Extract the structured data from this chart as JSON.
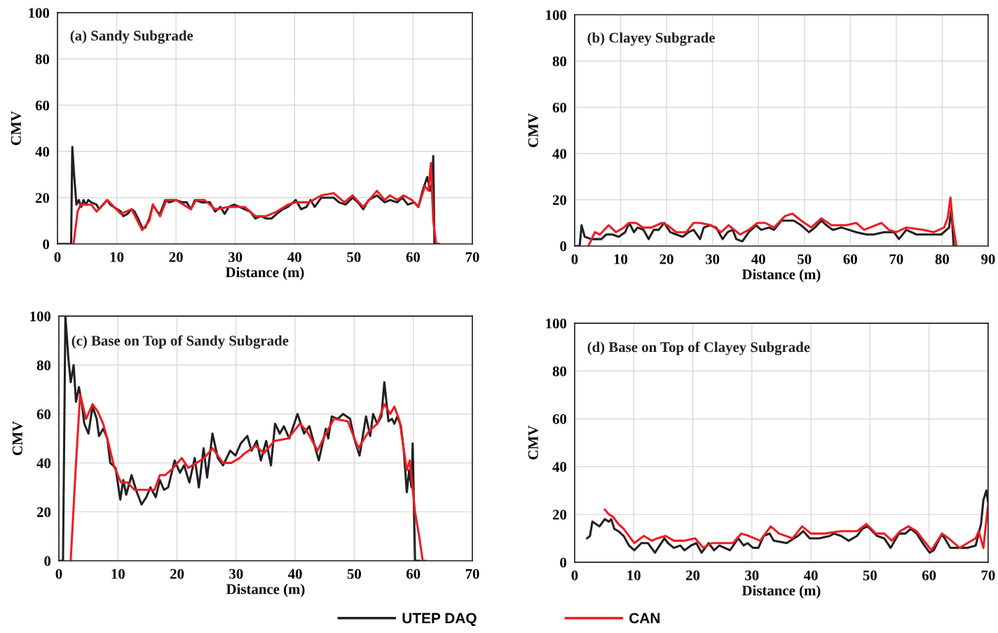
{
  "chart_data": [
    {
      "type": "line",
      "title": "(a) Sandy Subgrade",
      "xlabel": "Distance (m)",
      "ylabel": "CMV",
      "xlim": [
        0,
        70
      ],
      "ylim": [
        0,
        100
      ],
      "xticks": [
        0,
        10,
        20,
        30,
        40,
        50,
        60,
        70
      ],
      "yticks": [
        0,
        20,
        40,
        60,
        80,
        100
      ],
      "grid": true,
      "legend": "bottom",
      "series": [
        {
          "name": "UTEP DAQ",
          "color": "#231f20",
          "x": [
            0,
            2.3,
            2.5,
            2.8,
            3.2,
            3.6,
            4.0,
            4.4,
            4.8,
            5.2,
            5.7,
            6.6,
            7.0,
            7.7,
            8.4,
            8.9,
            9.5,
            10.7,
            11.1,
            11.8,
            12.5,
            13.0,
            13.6,
            14.3,
            14.8,
            15.5,
            16.1,
            16.8,
            17.3,
            18.2,
            18.9,
            20.0,
            21.1,
            21.8,
            22.5,
            23.2,
            24.3,
            25.7,
            26.6,
            27.5,
            28.2,
            28.9,
            29.8,
            30.7,
            31.6,
            32.5,
            33.4,
            34.3,
            35.2,
            36.1,
            37.0,
            38.0,
            38.9,
            40.2,
            41.1,
            42.0,
            42.7,
            43.4,
            44.5,
            45.7,
            46.6,
            47.5,
            48.6,
            49.8,
            50.7,
            51.6,
            52.5,
            53.9,
            55.2,
            56.1,
            57.3,
            58.2,
            59.1,
            60.2,
            60.9,
            61.6,
            62.4,
            62.9,
            63.2,
            63.4,
            63.6,
            64.3
          ],
          "values": [
            0,
            0,
            42,
            30,
            17,
            19,
            16,
            19,
            17,
            19,
            18,
            17,
            15,
            17,
            19,
            17,
            16,
            14,
            12,
            13,
            15,
            14,
            11,
            7,
            7,
            11,
            17,
            14,
            13,
            19,
            18,
            19,
            18,
            18,
            15,
            19,
            18,
            18,
            14,
            16,
            13,
            16,
            17,
            16,
            15,
            14,
            11,
            12,
            11,
            11,
            13,
            15,
            16,
            19,
            15,
            16,
            19,
            16,
            20,
            20,
            20,
            18,
            17,
            20,
            18,
            15,
            19,
            21,
            18,
            19,
            18,
            20,
            17,
            18,
            16,
            23,
            29,
            23,
            26,
            38,
            0,
            0
          ]
        },
        {
          "name": "CAN",
          "color": "#ed1c24",
          "x": [
            2.7,
            3.4,
            3.9,
            5.7,
            6.6,
            8.4,
            10.7,
            12.5,
            14.3,
            15.5,
            16.1,
            17.3,
            18.4,
            20.0,
            22.5,
            23.4,
            24.8,
            26.6,
            28.9,
            31.6,
            33.4,
            35.2,
            37.0,
            38.9,
            40.2,
            42.5,
            44.5,
            46.6,
            48.4,
            49.8,
            51.6,
            53.9,
            55.2,
            56.1,
            57.3,
            58.4,
            59.8,
            60.9,
            62.0,
            62.6,
            63.0,
            63.4,
            63.9,
            64.3
          ],
          "values": [
            0,
            14,
            17,
            17,
            14,
            19,
            13,
            15,
            6,
            10,
            17,
            12,
            19,
            19,
            15,
            19,
            19,
            15,
            16,
            16,
            12,
            12,
            14,
            17,
            18,
            18,
            21,
            22,
            18,
            21,
            16,
            23,
            19,
            21,
            19,
            21,
            19,
            16,
            25,
            23,
            35,
            10,
            0,
            0
          ]
        }
      ]
    },
    {
      "type": "line",
      "title": "(b) Clayey Subgrade",
      "xlabel": "Distance (m)",
      "ylabel": "CMV",
      "xlim": [
        0,
        90
      ],
      "ylim": [
        0,
        100
      ],
      "xticks": [
        0,
        10,
        20,
        30,
        40,
        50,
        60,
        70,
        80,
        90
      ],
      "yticks": [
        0,
        20,
        40,
        60,
        80,
        100
      ],
      "grid": true,
      "series": [
        {
          "color": "#231f20",
          "x": [
            0,
            1.1,
            1.5,
            2.2,
            3.6,
            4.7,
            5.8,
            6.9,
            8.2,
            9.6,
            11.0,
            11.9,
            12.9,
            13.7,
            15.0,
            16.1,
            17.2,
            18.3,
            19.5,
            20.8,
            22.1,
            23.5,
            24.8,
            25.9,
            27.3,
            28.1,
            29.5,
            30.8,
            32.2,
            33.3,
            34.4,
            35.2,
            36.5,
            37.9,
            39.5,
            40.6,
            42.3,
            43.4,
            45.0,
            46.1,
            47.7,
            49.3,
            51.0,
            52.3,
            53.7,
            54.8,
            56.2,
            58.1,
            59.7,
            61.3,
            63.5,
            65.1,
            67.3,
            69.5,
            70.6,
            72.2,
            74.4,
            76.6,
            78.2,
            79.8,
            81.5,
            82.0,
            82.5,
            83.1
          ],
          "values": [
            0,
            0,
            9,
            4,
            3,
            3,
            3,
            5,
            5,
            4,
            6,
            10,
            6,
            8,
            7,
            3,
            7,
            7,
            10,
            6,
            5,
            4,
            6,
            7,
            3,
            8,
            9,
            8,
            3,
            6,
            7,
            3,
            2,
            6,
            9,
            7,
            8,
            7,
            11,
            11,
            11,
            9,
            6,
            8,
            11,
            9,
            7,
            8,
            7,
            6,
            5,
            5,
            6,
            6,
            3,
            7,
            5,
            5,
            5,
            5,
            8,
            16,
            0,
            0
          ]
        },
        {
          "color": "#ed1c24",
          "x": [
            3.0,
            4.4,
            5.5,
            7.4,
            9.0,
            10.7,
            11.8,
            13.4,
            14.8,
            16.7,
            19.0,
            20.2,
            22.1,
            24.3,
            25.9,
            27.3,
            29.7,
            31.9,
            33.5,
            36.0,
            37.9,
            39.8,
            41.5,
            43.4,
            45.8,
            47.4,
            49.3,
            51.5,
            53.7,
            55.9,
            59.1,
            61.3,
            63.0,
            66.8,
            68.4,
            70.0,
            72.2,
            76.0,
            78.2,
            80.4,
            81.2,
            81.8,
            82.3,
            83.1
          ],
          "values": [
            0,
            6,
            5,
            9,
            6,
            8,
            10,
            10,
            8,
            8,
            10,
            9,
            6,
            6,
            10,
            10,
            9,
            6,
            9,
            5,
            7,
            10,
            10,
            8,
            13,
            14,
            11,
            8,
            12,
            9,
            9,
            10,
            7,
            10,
            7,
            6,
            8,
            7,
            6,
            8,
            12,
            21,
            10,
            0
          ]
        }
      ]
    },
    {
      "type": "line",
      "title": "(c) Base on Top of Sandy Subgrade",
      "xlabel": "Distance (m)",
      "ylabel": "CMV",
      "xlim": [
        0,
        70
      ],
      "ylim": [
        0,
        100
      ],
      "xticks": [
        0,
        10,
        20,
        30,
        40,
        50,
        60,
        70
      ],
      "yticks": [
        0,
        20,
        40,
        60,
        80,
        100
      ],
      "grid": true,
      "series": [
        {
          "color": "#231f20",
          "x": [
            0,
            0.7,
            1.1,
            1.6,
            2.0,
            2.5,
            2.9,
            3.4,
            3.9,
            4.3,
            5.0,
            5.7,
            6.4,
            6.8,
            7.5,
            8.2,
            8.7,
            9.6,
            10.4,
            10.9,
            11.4,
            12.3,
            13.2,
            14.0,
            14.8,
            15.5,
            16.4,
            17.1,
            17.8,
            18.5,
            19.6,
            20.5,
            21.2,
            22.1,
            23.0,
            23.7,
            24.5,
            25.1,
            26.0,
            26.9,
            27.8,
            29.0,
            29.9,
            30.8,
            31.9,
            32.6,
            33.5,
            34.2,
            35.1,
            35.9,
            36.6,
            37.4,
            38.1,
            39.0,
            40.4,
            41.5,
            42.4,
            44.0,
            45.2,
            45.6,
            46.2,
            47.2,
            48.1,
            49.3,
            50.0,
            50.9,
            52.0,
            52.7,
            53.2,
            53.9,
            54.6,
            55.1,
            55.8,
            56.4,
            56.8,
            57.3,
            57.9,
            58.4,
            58.9,
            59.3,
            59.7,
            59.9,
            60.3,
            61.0
          ],
          "values": [
            0,
            0,
            100,
            83,
            73,
            80,
            65,
            71,
            64,
            56,
            52,
            63,
            58,
            51,
            54,
            50,
            40,
            38,
            25,
            33,
            27,
            35,
            28,
            23,
            26,
            30,
            26,
            33,
            29,
            30,
            41,
            36,
            39,
            32,
            42,
            30,
            46,
            34,
            52,
            42,
            39,
            45,
            43,
            48,
            51,
            45,
            49,
            41,
            49,
            39,
            56,
            52,
            55,
            50,
            60,
            52,
            55,
            41,
            54,
            50,
            59,
            58,
            60,
            58,
            50,
            43,
            59,
            51,
            60,
            56,
            59,
            73,
            57,
            58,
            56,
            59,
            55,
            45,
            28,
            37,
            30,
            48,
            0,
            0
          ]
        },
        {
          "color": "#ed1c24",
          "x": [
            2.0,
            2.9,
            3.6,
            4.6,
            5.7,
            6.6,
            7.5,
            8.4,
            9.3,
            10.5,
            11.6,
            12.8,
            14.6,
            16.2,
            17.1,
            18.0,
            19.4,
            20.8,
            21.9,
            23.3,
            24.6,
            26.0,
            27.8,
            29.2,
            30.6,
            31.5,
            33.3,
            34.7,
            36.5,
            38.8,
            40.8,
            42.0,
            43.8,
            45.2,
            46.6,
            48.9,
            50.7,
            52.5,
            53.9,
            55.1,
            56.1,
            56.8,
            57.7,
            58.9,
            59.4,
            60.3,
            61.0,
            61.6,
            62.1
          ],
          "values": [
            0,
            40,
            68,
            58,
            64,
            61,
            56,
            48,
            39,
            32,
            32,
            29,
            29,
            29,
            35,
            35,
            38,
            42,
            38,
            40,
            42,
            46,
            40,
            40,
            42,
            44,
            47,
            44,
            49,
            50,
            56,
            53,
            45,
            52,
            58,
            57,
            46,
            53,
            56,
            64,
            60,
            63,
            57,
            37,
            41,
            20,
            10,
            0,
            0
          ]
        }
      ]
    },
    {
      "type": "line",
      "title": "(d) Base on Top of Clayey Subgrade",
      "xlabel": "Distance (m)",
      "ylabel": "CMV",
      "xlim": [
        0,
        70
      ],
      "ylim": [
        0,
        100
      ],
      "xticks": [
        0,
        10,
        20,
        30,
        40,
        50,
        60,
        70
      ],
      "yticks": [
        0,
        20,
        40,
        60,
        80,
        100
      ],
      "grid": true,
      "series": [
        {
          "color": "#231f20",
          "x": [
            2.1,
            2.6,
            3.0,
            4.2,
            5.1,
            5.8,
            6.2,
            6.7,
            7.4,
            8.3,
            9.2,
            10.1,
            11.3,
            12.4,
            13.6,
            15.2,
            15.8,
            16.8,
            17.9,
            18.6,
            19.7,
            20.6,
            21.5,
            22.7,
            23.6,
            24.5,
            26.3,
            27.7,
            28.6,
            29.3,
            30.2,
            31.1,
            32.0,
            33.0,
            33.7,
            35.9,
            37.8,
            38.7,
            39.8,
            41.4,
            43.2,
            43.9,
            45.1,
            46.4,
            47.8,
            48.7,
            49.6,
            51.2,
            52.4,
            53.5,
            54.9,
            56.0,
            56.9,
            57.9,
            59.2,
            60.1,
            60.8,
            62.0,
            62.4,
            63.6,
            65.2,
            66.5,
            67.9,
            68.8,
            69.2,
            69.7,
            70.0
          ],
          "values": [
            10,
            11,
            17,
            15,
            18,
            17,
            18,
            14,
            13,
            11,
            7,
            5,
            8,
            8,
            4,
            10,
            8,
            6,
            7,
            5,
            7,
            8,
            4,
            8,
            5,
            7,
            5,
            10,
            7,
            8,
            6,
            6,
            11,
            12,
            9,
            8,
            11,
            13,
            10,
            10,
            11,
            12,
            11,
            9,
            11,
            14,
            15,
            11,
            10,
            6,
            12,
            12,
            14,
            12,
            7,
            4,
            5,
            11,
            11,
            6,
            6,
            6,
            7,
            16,
            26,
            30,
            25
          ]
        },
        {
          "color": "#ed1c24",
          "x": [
            5.1,
            5.8,
            6.5,
            7.4,
            8.3,
            9.2,
            10.1,
            11.7,
            13.1,
            14.0,
            15.4,
            16.8,
            18.6,
            20.4,
            21.8,
            23.2,
            25.4,
            26.8,
            28.2,
            29.5,
            31.4,
            33.2,
            34.6,
            36.9,
            38.5,
            40.0,
            42.3,
            45.1,
            47.8,
            49.4,
            51.0,
            52.4,
            53.7,
            55.1,
            56.5,
            57.9,
            58.8,
            60.4,
            62.2,
            63.3,
            65.2,
            66.5,
            67.9,
            68.4,
            69.2,
            69.9,
            70.0
          ],
          "values": [
            22,
            20,
            19,
            16,
            14,
            11,
            8,
            11,
            9,
            10,
            11,
            9,
            9,
            10,
            6,
            8,
            8,
            8,
            12,
            11,
            9,
            15,
            12,
            10,
            15,
            12,
            12,
            13,
            13,
            16,
            12,
            12,
            9,
            13,
            15,
            13,
            10,
            5,
            12,
            10,
            6,
            8,
            10,
            13,
            6,
            22,
            24
          ]
        }
      ]
    }
  ]
}
